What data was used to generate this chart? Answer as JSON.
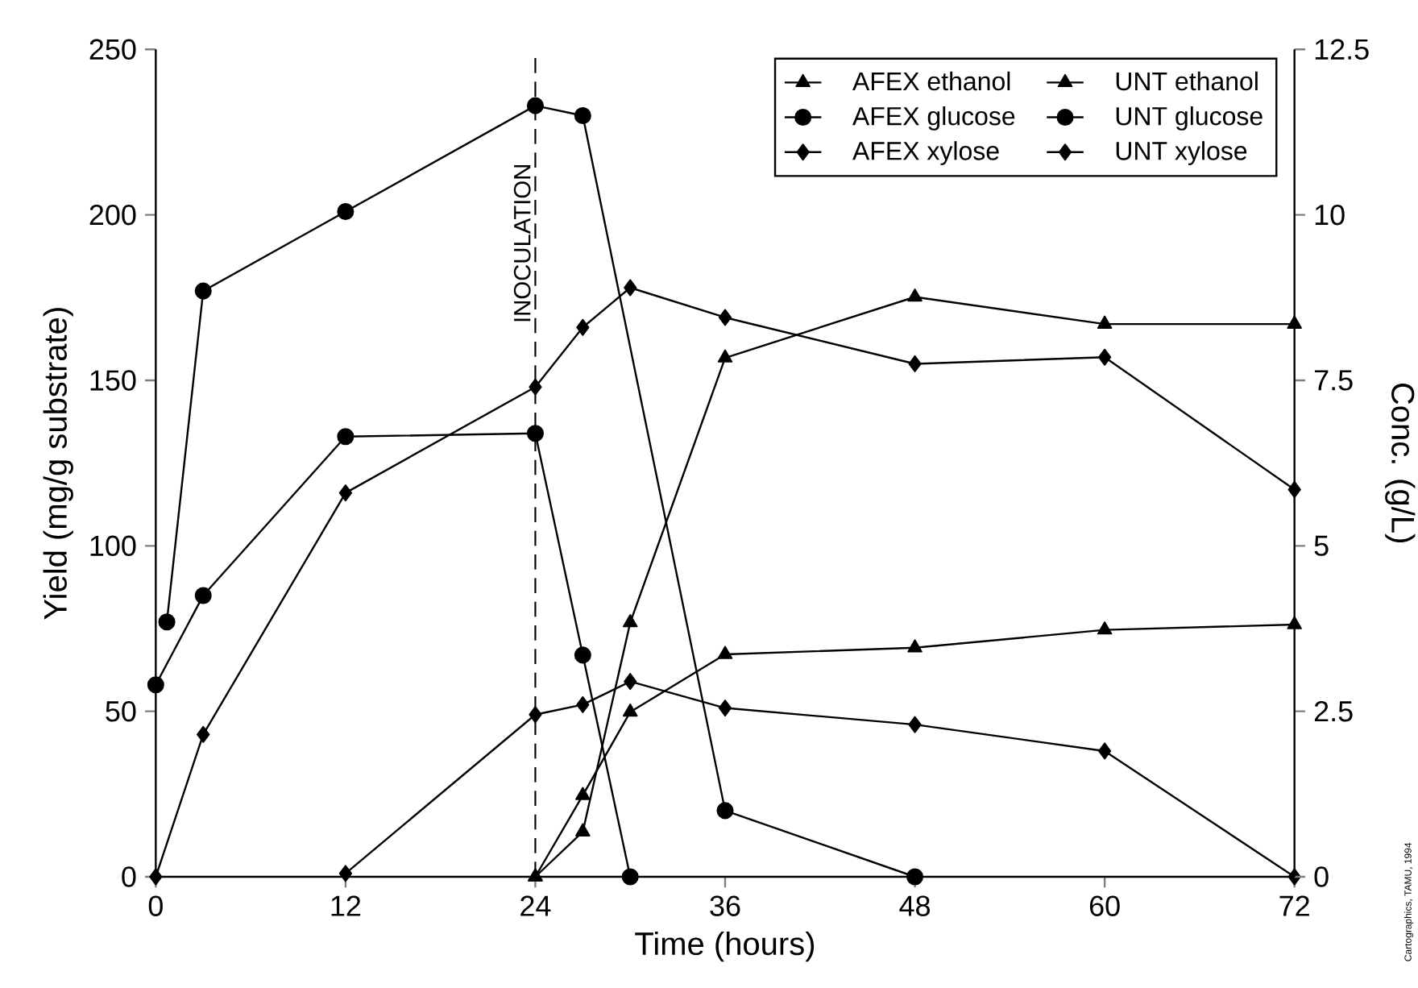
{
  "chart_data": {
    "type": "line",
    "xlabel": "Time (hours)",
    "ylabel": "Yield (mg/g substrate)",
    "y2label": "Conc. (g/L)",
    "xlim": [
      0,
      72
    ],
    "xticks": [
      0,
      12,
      24,
      36,
      48,
      60,
      72
    ],
    "ylim": [
      0,
      250
    ],
    "yticks": [
      0,
      50,
      100,
      150,
      200,
      250
    ],
    "y2lim": [
      0,
      12.5
    ],
    "y2ticks": [
      0,
      2.5,
      5,
      7.5,
      10,
      12.5
    ],
    "legend": "top right",
    "grid": false,
    "ref_lines": [
      {
        "axis": "x",
        "value": 24,
        "label": "INOCULATION",
        "line_style": "dashed"
      }
    ],
    "annotations": [
      "Cartographics, TAMU, 1994"
    ],
    "series": [
      {
        "name": "AFEX ethanol",
        "color": "#000000",
        "marker": "triangle",
        "axis": "y2",
        "x": [
          24,
          27,
          30,
          36,
          48,
          60,
          72
        ],
        "values": [
          0,
          0.68,
          3.84,
          7.84,
          8.76,
          8.35,
          8.35
        ]
      },
      {
        "name": "UNT ethanol",
        "color": "#000000",
        "marker": "triangle",
        "axis": "y2",
        "x": [
          24,
          27,
          30,
          36,
          48,
          60,
          72
        ],
        "values": [
          0,
          1.23,
          2.49,
          3.36,
          3.46,
          3.73,
          3.81
        ]
      },
      {
        "name": "AFEX glucose",
        "color": "#000000",
        "marker": "circle",
        "x": [
          0.7,
          3,
          12,
          24,
          27,
          36,
          48
        ],
        "values": [
          77,
          177,
          201,
          233,
          230,
          20,
          0
        ]
      },
      {
        "name": "UNT glucose",
        "color": "#000000",
        "marker": "circle",
        "x": [
          0,
          3,
          12,
          24,
          27,
          30
        ],
        "values": [
          58,
          85,
          133,
          134,
          67,
          0
        ]
      },
      {
        "name": "AFEX xylose",
        "color": "#000000",
        "marker": "diamond",
        "x": [
          0,
          3,
          12,
          24,
          27,
          30,
          36,
          48,
          60,
          72
        ],
        "values": [
          0,
          43,
          116,
          148,
          166,
          178,
          169,
          155,
          157,
          117
        ]
      },
      {
        "name": "UNT xylose",
        "color": "#000000",
        "marker": "diamond",
        "x": [
          12,
          24,
          27,
          30,
          36,
          48,
          60,
          72
        ],
        "values": [
          1,
          49,
          52,
          59,
          51,
          46,
          38,
          0
        ]
      }
    ]
  }
}
